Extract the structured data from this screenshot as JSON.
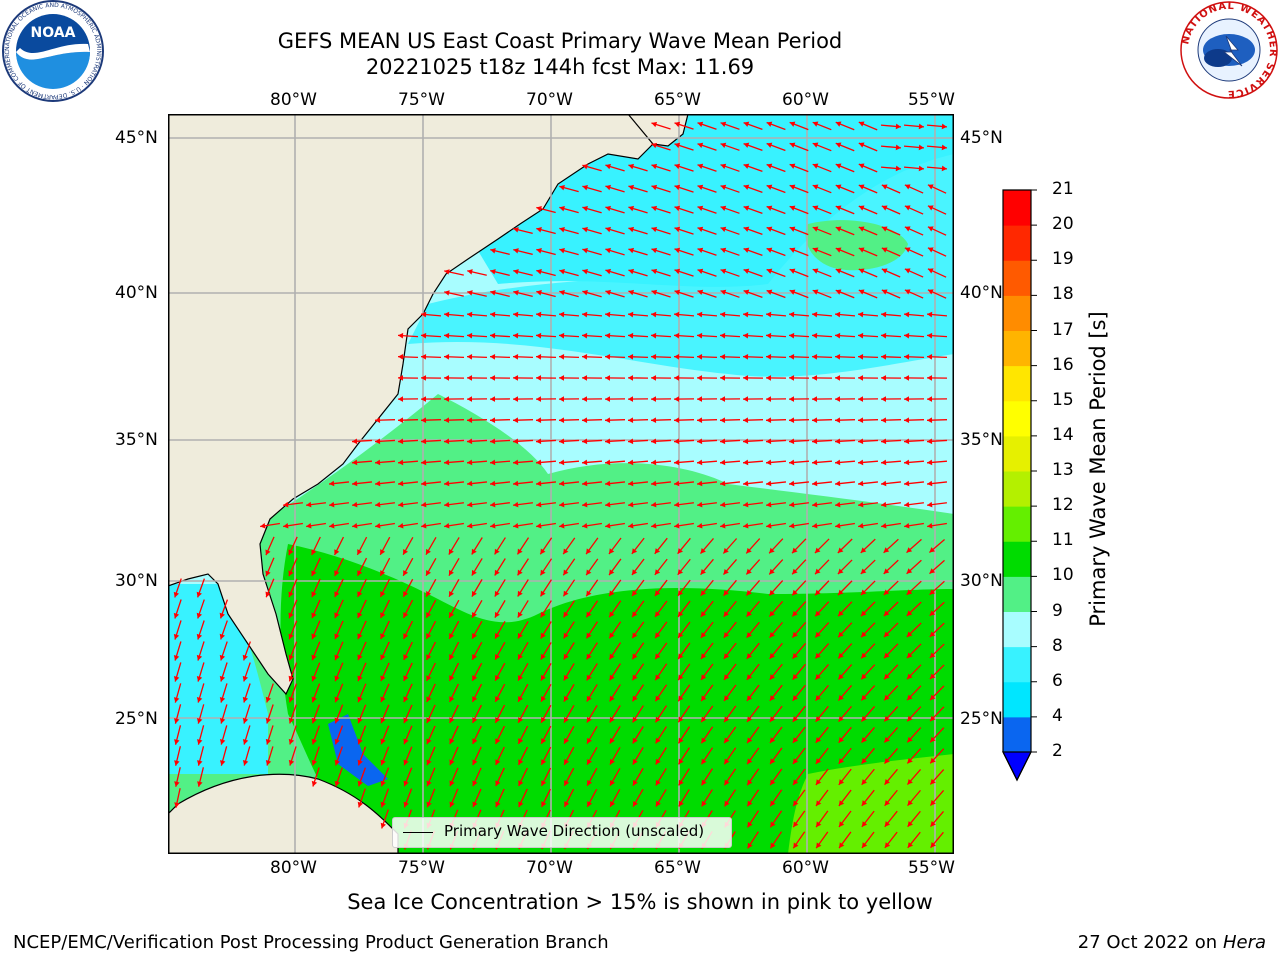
{
  "header": {
    "title_line1": "GEFS MEAN US East Coast Primary Wave Mean Period",
    "title_line2": "20221025 t18z 144h fcst   Max: 11.69",
    "noaa_logo_text": "NOAA",
    "noaa_ring_text": "NATIONAL OCEANIC AND ATMOSPHERIC ADMINISTRATION · U.S. DEPARTMENT OF COMMERCE",
    "nws_ring_text": "NATIONAL WEATHER SERVICE"
  },
  "map": {
    "lon_ticks": [
      "80°W",
      "75°W",
      "70°W",
      "65°W",
      "60°W",
      "55°W"
    ],
    "lat_ticks_left": [
      "45°N",
      "40°N",
      "35°N",
      "30°N",
      "25°N"
    ],
    "lat_ticks_right": [
      "45°N",
      "40°N",
      "35°N",
      "30°N",
      "25°N"
    ],
    "legend_label": "Primary Wave Direction (unscaled)",
    "colors": {
      "land": "#efecdc",
      "grid": "#b0b0b0",
      "arrow": "#ff0000",
      "coast": "#000000"
    }
  },
  "colorbar": {
    "label": "Primary Wave Mean Period [s]",
    "levels": [
      "2",
      "4",
      "6",
      "8",
      "9",
      "10",
      "11",
      "12",
      "13",
      "14",
      "15",
      "16",
      "17",
      "18",
      "19",
      "20",
      "21"
    ],
    "colors": [
      "#0a66f0",
      "#00e6ff",
      "#38f2ff",
      "#a8fdff",
      "#52f086",
      "#00dc00",
      "#64ef00",
      "#b4f000",
      "#e6f000",
      "#ffff00",
      "#ffe600",
      "#ffb400",
      "#ff8c00",
      "#ff5a00",
      "#ff2800",
      "#ff0000"
    ],
    "extend_color": "#0000ff"
  },
  "footer": {
    "note": "Sea Ice Concentration > 15% is shown in pink to yellow",
    "credit": "NCEP/EMC/Verification Post Processing Product Generation Branch",
    "date": "27 Oct 2022 on",
    "machine": "Hera"
  }
}
